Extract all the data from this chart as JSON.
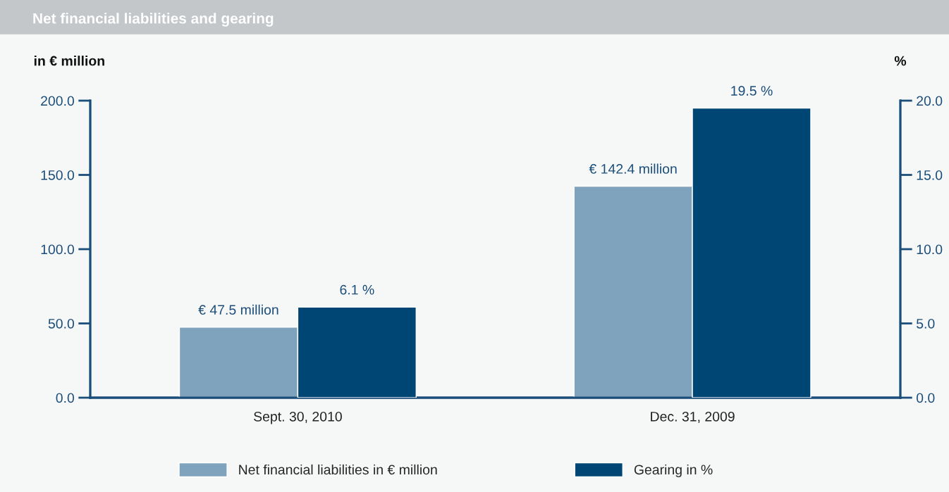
{
  "chart_data": {
    "type": "bar",
    "title": "Net financial liabilities and gearing",
    "ylabel": "in € million",
    "y2label": "%",
    "categories": [
      "Sept. 30, 2010",
      "Dec. 31, 2009"
    ],
    "series": [
      {
        "name": "Net financial liabilities in € million",
        "color": "#7fa3bc",
        "values": [
          47.5,
          142.4
        ],
        "value_labels": [
          "€ 47.5 million",
          "€ 142.4 million"
        ]
      },
      {
        "name": "Gearing in %",
        "color": "#004675",
        "values": [
          6.1,
          19.5
        ],
        "axis": "y2",
        "value_labels": [
          "6.1 %",
          "19.5 %"
        ]
      }
    ],
    "ylim": [
      0,
      200
    ],
    "yticks": [
      {
        "value": 0,
        "label": "0.0"
      },
      {
        "value": 50,
        "label": "50.0"
      },
      {
        "value": 100,
        "label": "100.0"
      },
      {
        "value": 150,
        "label": "150.0"
      },
      {
        "value": 200,
        "label": "200.0"
      }
    ],
    "y2lim": [
      0,
      20
    ],
    "y2ticks": [
      {
        "value": 0,
        "label": "0.0"
      },
      {
        "value": 5,
        "label": "5.0"
      },
      {
        "value": 10,
        "label": "10.0"
      },
      {
        "value": 15,
        "label": "15.0"
      },
      {
        "value": 20,
        "label": "20.0"
      }
    ],
    "grid": false,
    "legend": "bottom"
  }
}
